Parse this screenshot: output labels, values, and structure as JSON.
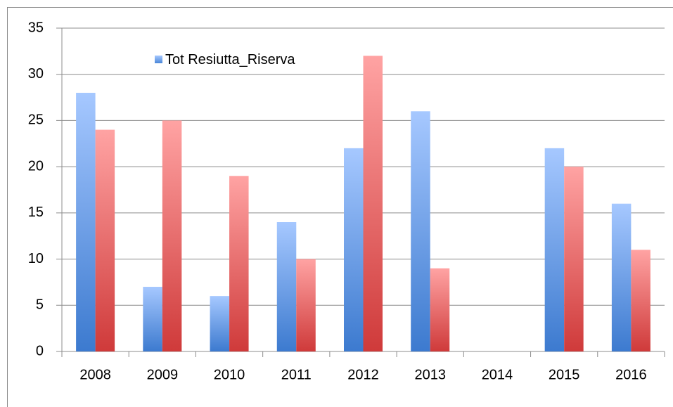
{
  "chart_data": {
    "type": "bar",
    "categories": [
      "2008",
      "2009",
      "2010",
      "2011",
      "2012",
      "2013",
      "2014",
      "2015",
      "2016"
    ],
    "series": [
      {
        "name": "Tot Resiutta_Riserva",
        "color": "#4a86d8",
        "values": [
          28,
          7,
          6,
          14,
          22,
          26,
          null,
          22,
          16
        ]
      },
      {
        "color": "#d64545",
        "values": [
          24,
          25,
          19,
          10,
          32,
          9,
          null,
          20,
          11
        ]
      }
    ],
    "ylim": [
      0,
      35
    ],
    "yticks": [
      0,
      5,
      10,
      15,
      20,
      25,
      30,
      35
    ],
    "grid": true,
    "legend": "top-left"
  }
}
